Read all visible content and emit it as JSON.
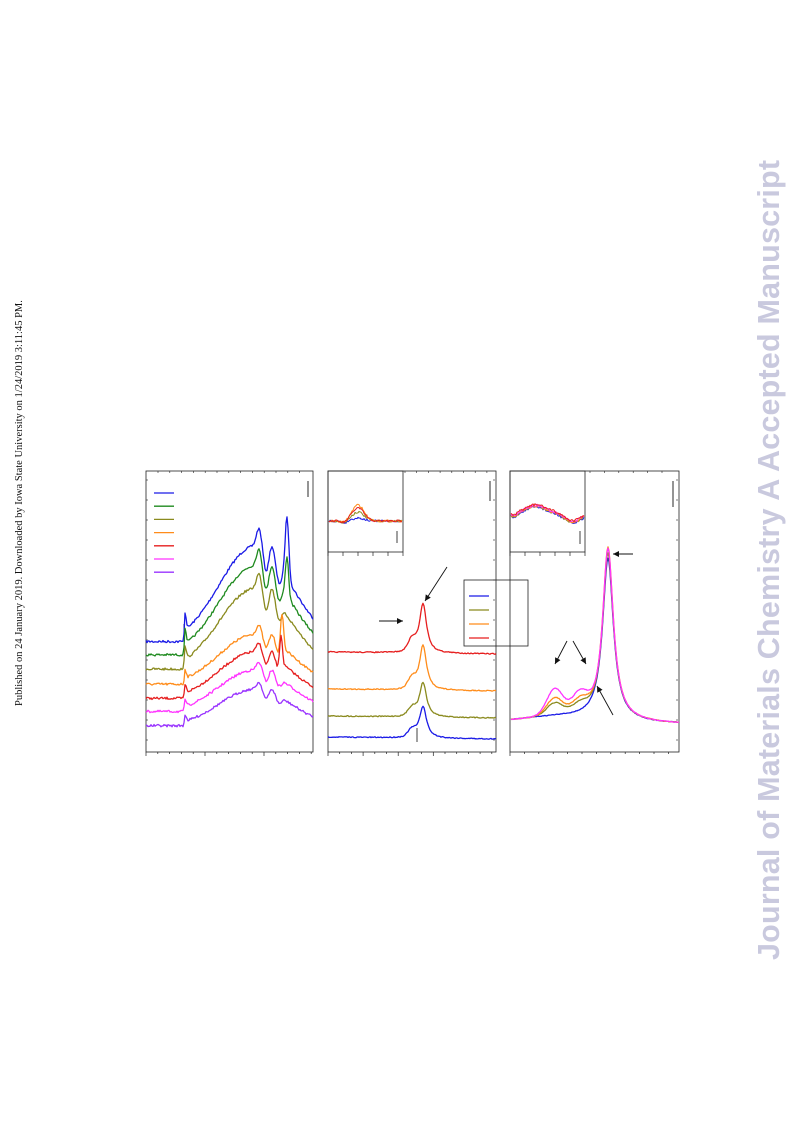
{
  "header": {
    "publication_note": "Published on 24 January 2019. Downloaded by Iowa State University on 1/24/2019 3:11:45 PM."
  },
  "watermark": {
    "text": "Journal of Materials Chemistry A Accepted Manuscript"
  },
  "figure": {
    "panels": [
      "left",
      "middle",
      "right"
    ],
    "colors": {
      "blue": "#1a1ae6",
      "green": "#1e8a1e",
      "olive": "#8a8a1e",
      "orange": "#ff8c1a",
      "red": "#e61e1e",
      "magenta": "#ff33ff",
      "violet": "#9933ff"
    },
    "left_legend_colors": [
      "blue",
      "green",
      "olive",
      "orange",
      "red",
      "magenta",
      "violet"
    ],
    "middle_legend_colors": [
      "blue",
      "olive",
      "orange",
      "red"
    ]
  }
}
